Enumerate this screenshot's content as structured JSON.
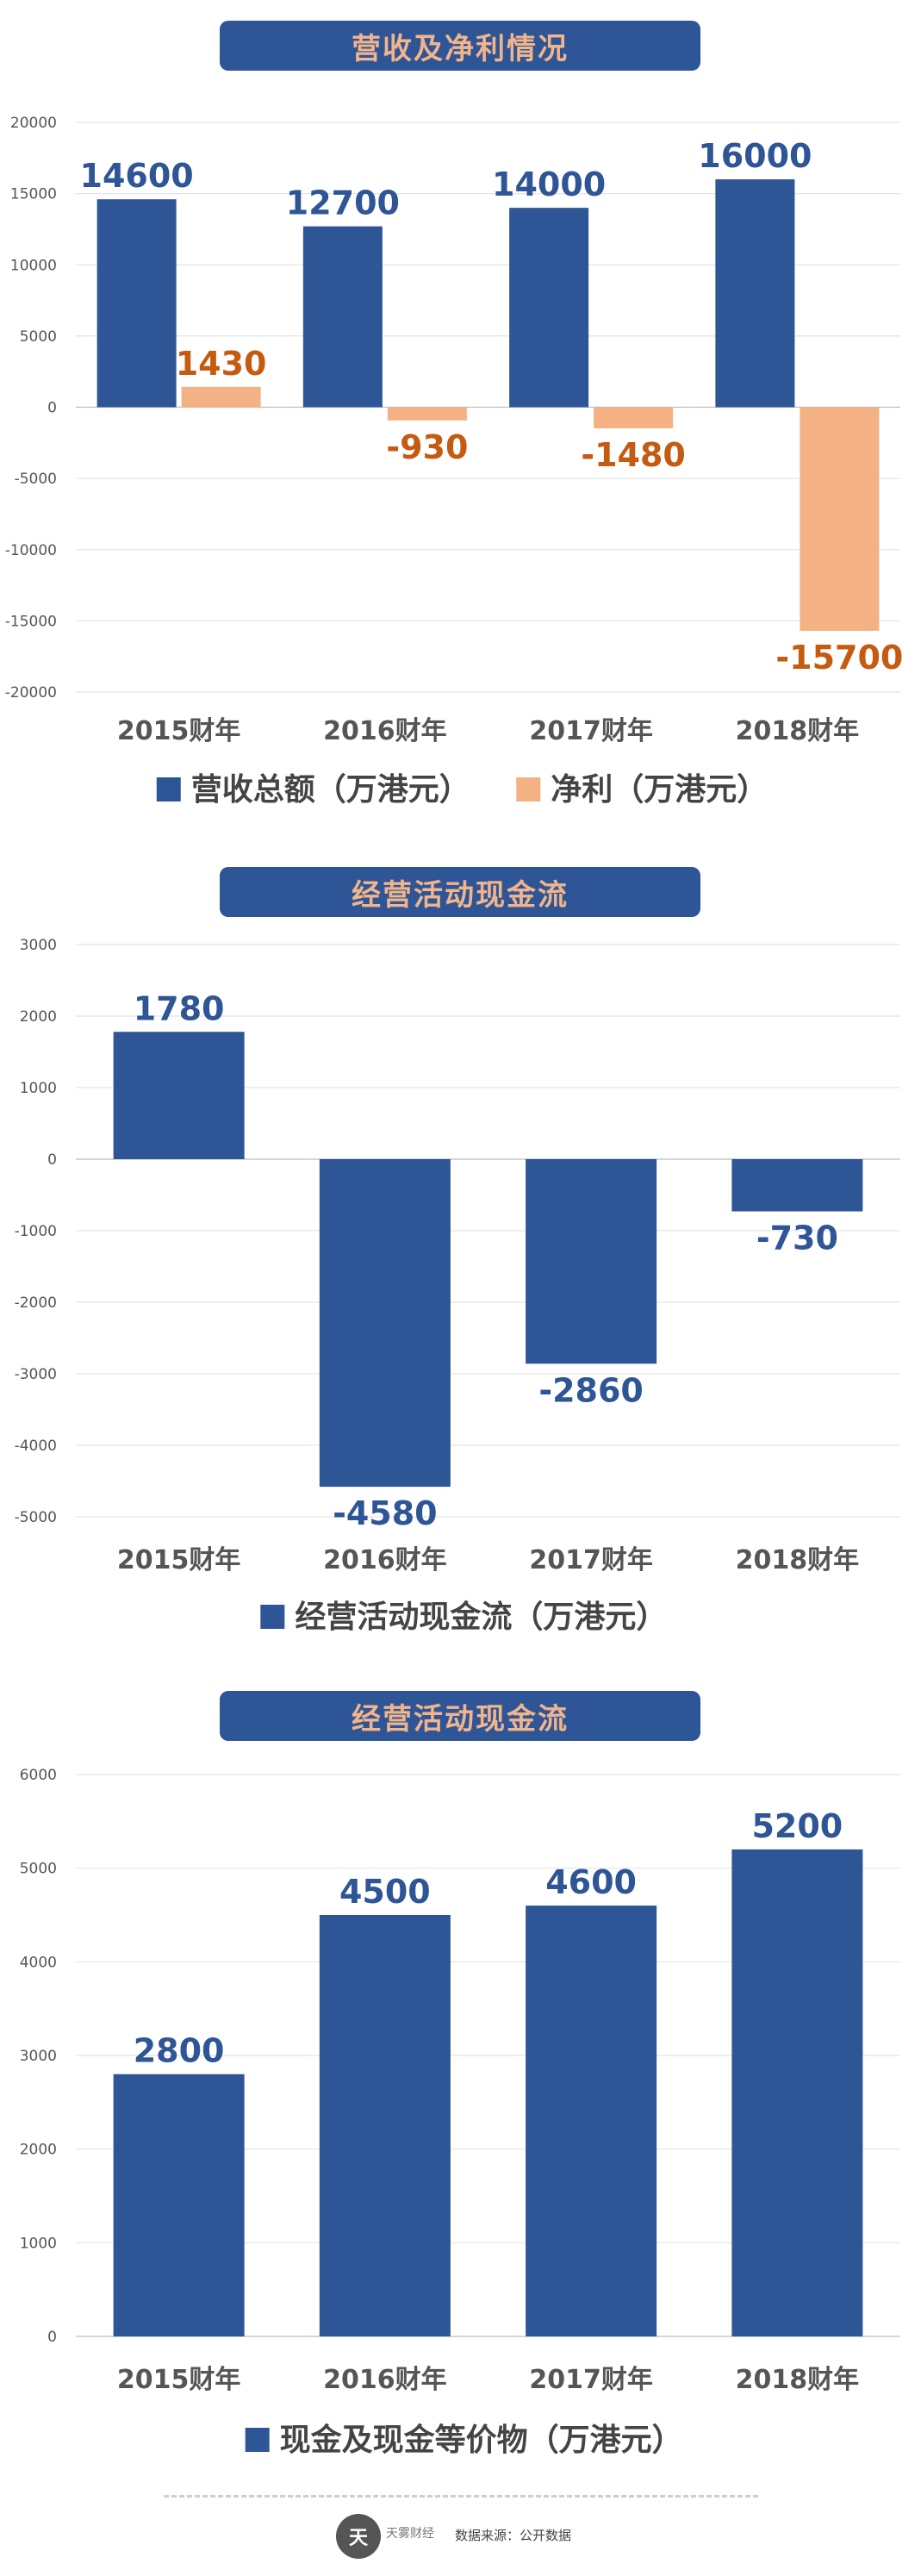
{
  "chart_data": [
    {
      "type": "bar",
      "title": "营收及净利情况",
      "categories": [
        "2015财年",
        "2016财年",
        "2017财年",
        "2018财年"
      ],
      "series": [
        {
          "name": "营收总额（万港元）",
          "values": [
            14600,
            12700,
            14000,
            16000
          ],
          "color": "#2e5596",
          "label_color": "#2e5596"
        },
        {
          "name": "净利（万港元）",
          "values": [
            1430,
            -930,
            -1480,
            -15700
          ],
          "color": "#f4b183",
          "label_color": "#c55a11"
        }
      ],
      "ylim": [
        -20000,
        20000
      ],
      "yticks": [
        20000,
        15000,
        10000,
        5000,
        0,
        -5000,
        -10000,
        -15000,
        -20000
      ],
      "grid": true,
      "legend": "bottom"
    },
    {
      "type": "bar",
      "title": "经营活动现金流",
      "categories": [
        "2015财年",
        "2016财年",
        "2017财年",
        "2018财年"
      ],
      "series": [
        {
          "name": "经营活动现金流（万港元）",
          "values": [
            1780,
            -4580,
            -2860,
            -730
          ],
          "color": "#2e5596",
          "label_color": "#2e5596"
        }
      ],
      "ylim": [
        -5000,
        3000
      ],
      "yticks": [
        3000,
        2000,
        1000,
        0,
        -1000,
        -2000,
        -3000,
        -4000,
        -5000
      ],
      "grid": true,
      "legend": "bottom"
    },
    {
      "type": "bar",
      "title": "经营活动现金流",
      "categories": [
        "2015财年",
        "2016财年",
        "2017财年",
        "2018财年"
      ],
      "series": [
        {
          "name": "现金及现金等价物（万港元）",
          "values": [
            2800,
            4500,
            4600,
            5200
          ],
          "color": "#2e5596",
          "label_color": "#2e5596"
        }
      ],
      "ylim": [
        0,
        6000
      ],
      "yticks": [
        6000,
        5000,
        4000,
        3000,
        2000,
        1000,
        0
      ],
      "grid": true,
      "legend": "bottom"
    }
  ],
  "footer": {
    "logo_text": "天",
    "brand": "天雾财经",
    "source": "数据来源：公开数据"
  }
}
